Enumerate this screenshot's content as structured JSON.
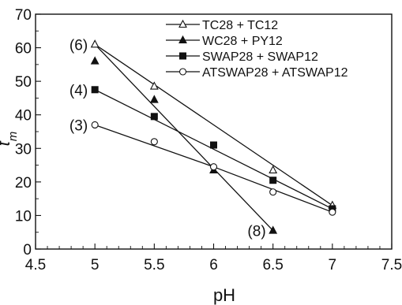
{
  "chart_data": {
    "type": "line",
    "xlabel": "pH",
    "ylabel_main": "t",
    "ylabel_sub": "m",
    "xlim": [
      4.5,
      7.5
    ],
    "ylim": [
      0,
      70
    ],
    "xticks": [
      4.5,
      5,
      5.5,
      6,
      6.5,
      7,
      7.5
    ],
    "xtick_labels": [
      "4.5",
      "5",
      "5.5",
      "6",
      "6.5",
      "7",
      "7.5"
    ],
    "yticks": [
      0,
      10,
      20,
      30,
      40,
      50,
      60,
      70
    ],
    "ytick_labels": [
      "0",
      "10",
      "20",
      "30",
      "40",
      "50",
      "60",
      "70"
    ],
    "grid": false,
    "legend_position": "top-right",
    "series": [
      {
        "name": "TC28 + TC12",
        "marker": "open-triangle",
        "x": [
          5,
          5.5,
          6.5,
          7
        ],
        "y": [
          61,
          48.5,
          23.5,
          13
        ]
      },
      {
        "name": "WC28 + PY12",
        "marker": "filled-triangle",
        "x": [
          5,
          5.5,
          6,
          6.5
        ],
        "y": [
          56,
          44.5,
          23.5,
          5.5
        ]
      },
      {
        "name": "SWAP28 + SWAP12",
        "marker": "filled-square",
        "x": [
          5,
          5.5,
          6,
          6.5,
          7
        ],
        "y": [
          47.5,
          39.5,
          31,
          20.5,
          12
        ]
      },
      {
        "name": "ATSWAP28 + ATSWAP12",
        "marker": "open-circle",
        "x": [
          5,
          5.5,
          6,
          6.5,
          7
        ],
        "y": [
          37,
          32,
          24.5,
          17,
          11
        ]
      }
    ],
    "lines": [
      {
        "x": [
          5,
          7
        ],
        "y": [
          61,
          13
        ]
      },
      {
        "x": [
          5,
          6.5
        ],
        "y": [
          61,
          5.5
        ]
      },
      {
        "x": [
          5,
          7
        ],
        "y": [
          47.5,
          12
        ]
      },
      {
        "x": [
          5,
          6,
          7
        ],
        "y": [
          37,
          24.5,
          11
        ]
      }
    ],
    "annotations": [
      {
        "text": "(6)",
        "x": 5,
        "y": 61,
        "side": "left"
      },
      {
        "text": "(4)",
        "x": 5,
        "y": 47.5,
        "side": "left"
      },
      {
        "text": "(3)",
        "x": 5,
        "y": 37,
        "side": "left"
      },
      {
        "text": "(8)",
        "x": 6.5,
        "y": 5.5,
        "side": "left"
      }
    ]
  }
}
